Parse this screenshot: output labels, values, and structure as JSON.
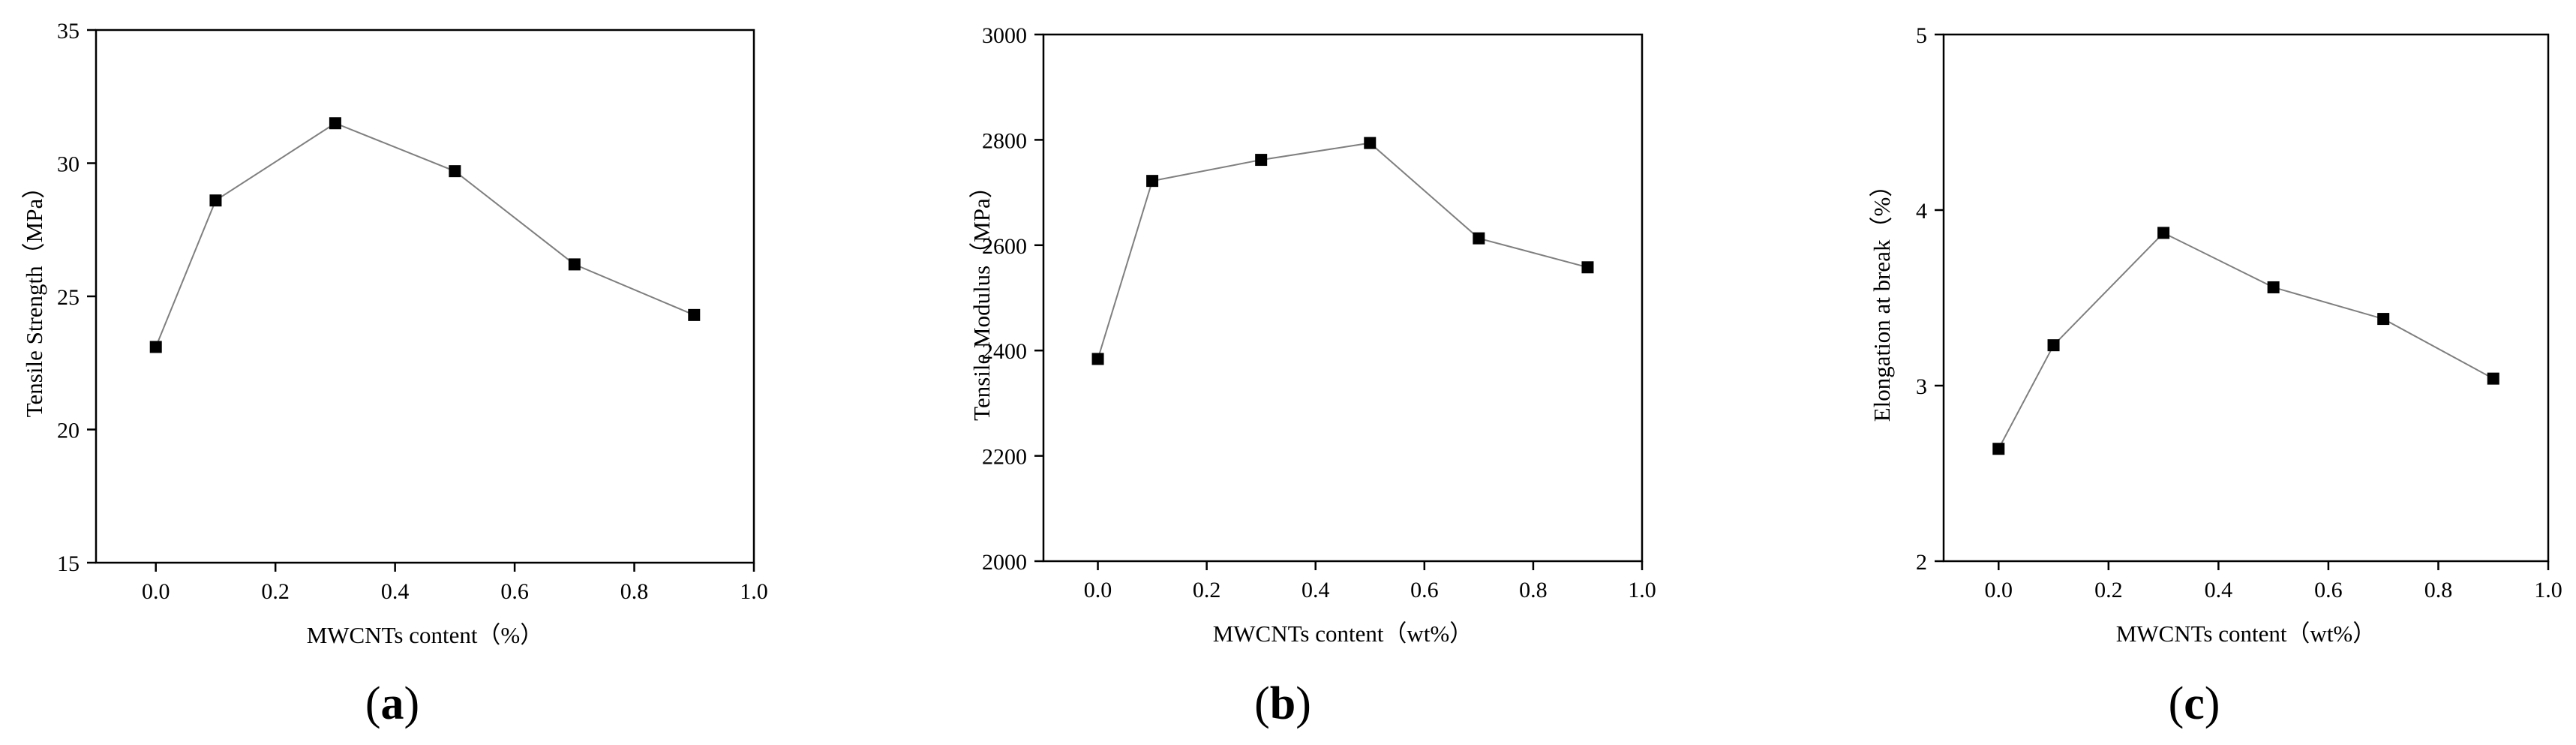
{
  "figure": {
    "panel_labels": [
      "(a)",
      "(b)",
      "(c)"
    ]
  },
  "chart_data": [
    {
      "type": "line",
      "panel": "(a)",
      "xlabel": "MWCNTs content（%）",
      "ylabel": "Tensile Strength（MPa）",
      "xlim": [
        -0.1,
        1.0
      ],
      "ylim": [
        15,
        35
      ],
      "xticks": [
        0.0,
        0.2,
        0.4,
        0.6,
        0.8,
        1.0
      ],
      "yticks": [
        15,
        20,
        25,
        30,
        35
      ],
      "x_tick_labels": [
        "0.0",
        "0.2",
        "0.4",
        "0.6",
        "0.8",
        "1.0"
      ],
      "y_tick_labels": [
        "15",
        "20",
        "25",
        "30",
        "35"
      ],
      "grid": false,
      "series": [
        {
          "x": [
            0.0,
            0.1,
            0.3,
            0.5,
            0.7,
            0.9
          ],
          "y": [
            23.1,
            28.6,
            31.5,
            29.7,
            26.2,
            24.3
          ]
        }
      ]
    },
    {
      "type": "line",
      "panel": "(b)",
      "xlabel": "MWCNTs content（wt%）",
      "ylabel": "Tensile Modulus（MPa）",
      "xlim": [
        -0.1,
        1.0
      ],
      "ylim": [
        2000,
        3000
      ],
      "xticks": [
        0.0,
        0.2,
        0.4,
        0.6,
        0.8,
        1.0
      ],
      "yticks": [
        2000,
        2200,
        2400,
        2600,
        2800,
        3000
      ],
      "x_tick_labels": [
        "0.0",
        "0.2",
        "0.4",
        "0.6",
        "0.8",
        "1.0"
      ],
      "y_tick_labels": [
        "2000",
        "2200",
        "2400",
        "2600",
        "2800",
        "3000"
      ],
      "grid": false,
      "series": [
        {
          "x": [
            0.0,
            0.1,
            0.3,
            0.5,
            0.7,
            0.9
          ],
          "y": [
            2384,
            2722,
            2762,
            2794,
            2613,
            2558
          ]
        }
      ]
    },
    {
      "type": "line",
      "panel": "(c)",
      "xlabel": "MWCNTs content（wt%）",
      "ylabel": "Elongation at break（%）",
      "xlim": [
        -0.1,
        1.0
      ],
      "ylim": [
        2,
        5
      ],
      "xticks": [
        0.0,
        0.2,
        0.4,
        0.6,
        0.8,
        1.0
      ],
      "yticks": [
        2,
        3,
        4,
        5
      ],
      "x_tick_labels": [
        "0.0",
        "0.2",
        "0.4",
        "0.6",
        "0.8",
        "1.0"
      ],
      "y_tick_labels": [
        "2",
        "3",
        "4",
        "5"
      ],
      "grid": false,
      "series": [
        {
          "x": [
            0.0,
            0.1,
            0.3,
            0.5,
            0.7,
            0.9
          ],
          "y": [
            2.64,
            3.23,
            3.87,
            3.56,
            3.38,
            3.04
          ]
        }
      ]
    }
  ]
}
